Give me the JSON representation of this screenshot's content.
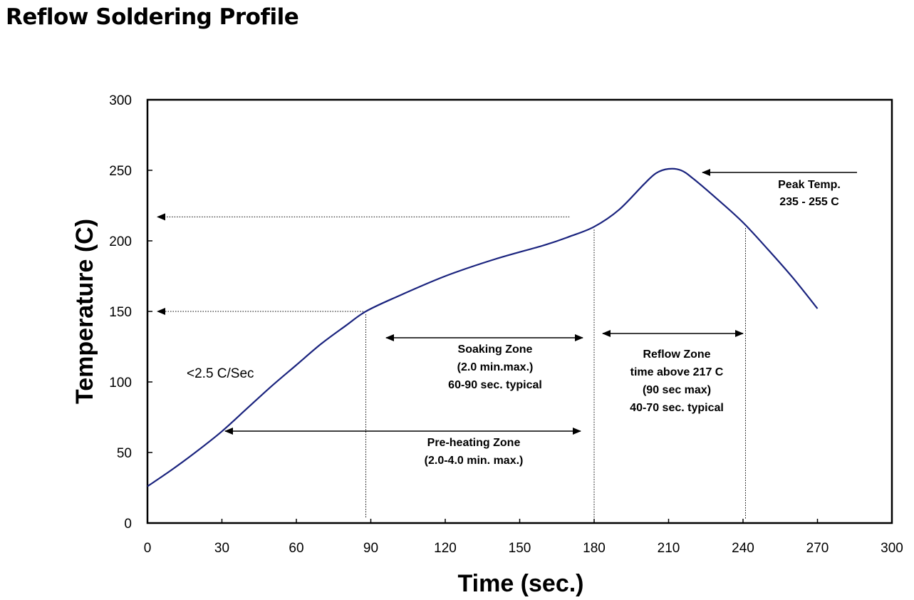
{
  "page": {
    "title": "Reflow Soldering Profile"
  },
  "chart_data": {
    "type": "line",
    "title": "",
    "xlabel": "Time (sec.)",
    "ylabel": "Temperature (C)",
    "xlim": [
      0,
      300
    ],
    "ylim": [
      0,
      300
    ],
    "xticks": [
      0,
      30,
      60,
      90,
      120,
      150,
      180,
      210,
      240,
      270,
      300
    ],
    "yticks": [
      0,
      50,
      100,
      150,
      200,
      250,
      300
    ],
    "grid": false,
    "line_color": "#1a237e",
    "series": [
      {
        "name": "",
        "x": [
          0,
          10,
          20,
          30,
          40,
          50,
          60,
          70,
          80,
          88,
          100,
          120,
          140,
          160,
          170,
          180,
          190,
          200,
          205,
          210,
          215,
          220,
          230,
          240,
          250,
          260,
          270
        ],
        "y": [
          26,
          38,
          51,
          65,
          81,
          97,
          112,
          127,
          140,
          150,
          160,
          175,
          187,
          197,
          203,
          210,
          222,
          240,
          248,
          251,
          250,
          244,
          229,
          213,
          194,
          174,
          152
        ]
      }
    ],
    "annotations": {
      "peak": {
        "line1": "Peak Temp.",
        "line2": "235 - 255 C"
      },
      "ramp": "<2.5 C/Sec",
      "soaking": {
        "line1": "Soaking Zone",
        "line2": "(2.0 min.max.)",
        "line3": "60-90 sec. typical"
      },
      "reflow": {
        "line1": "Reflow Zone",
        "line2": "time above 217 C",
        "line3": "(90 sec max)",
        "line4": "40-70 sec. typical"
      },
      "preheat": {
        "line1": "Pre-heating Zone",
        "line2": "(2.0-4.0 min. max.)"
      }
    },
    "reference_lines": {
      "vertical_x": [
        88,
        180,
        241
      ],
      "horizontal_y": [
        217,
        150
      ]
    }
  }
}
